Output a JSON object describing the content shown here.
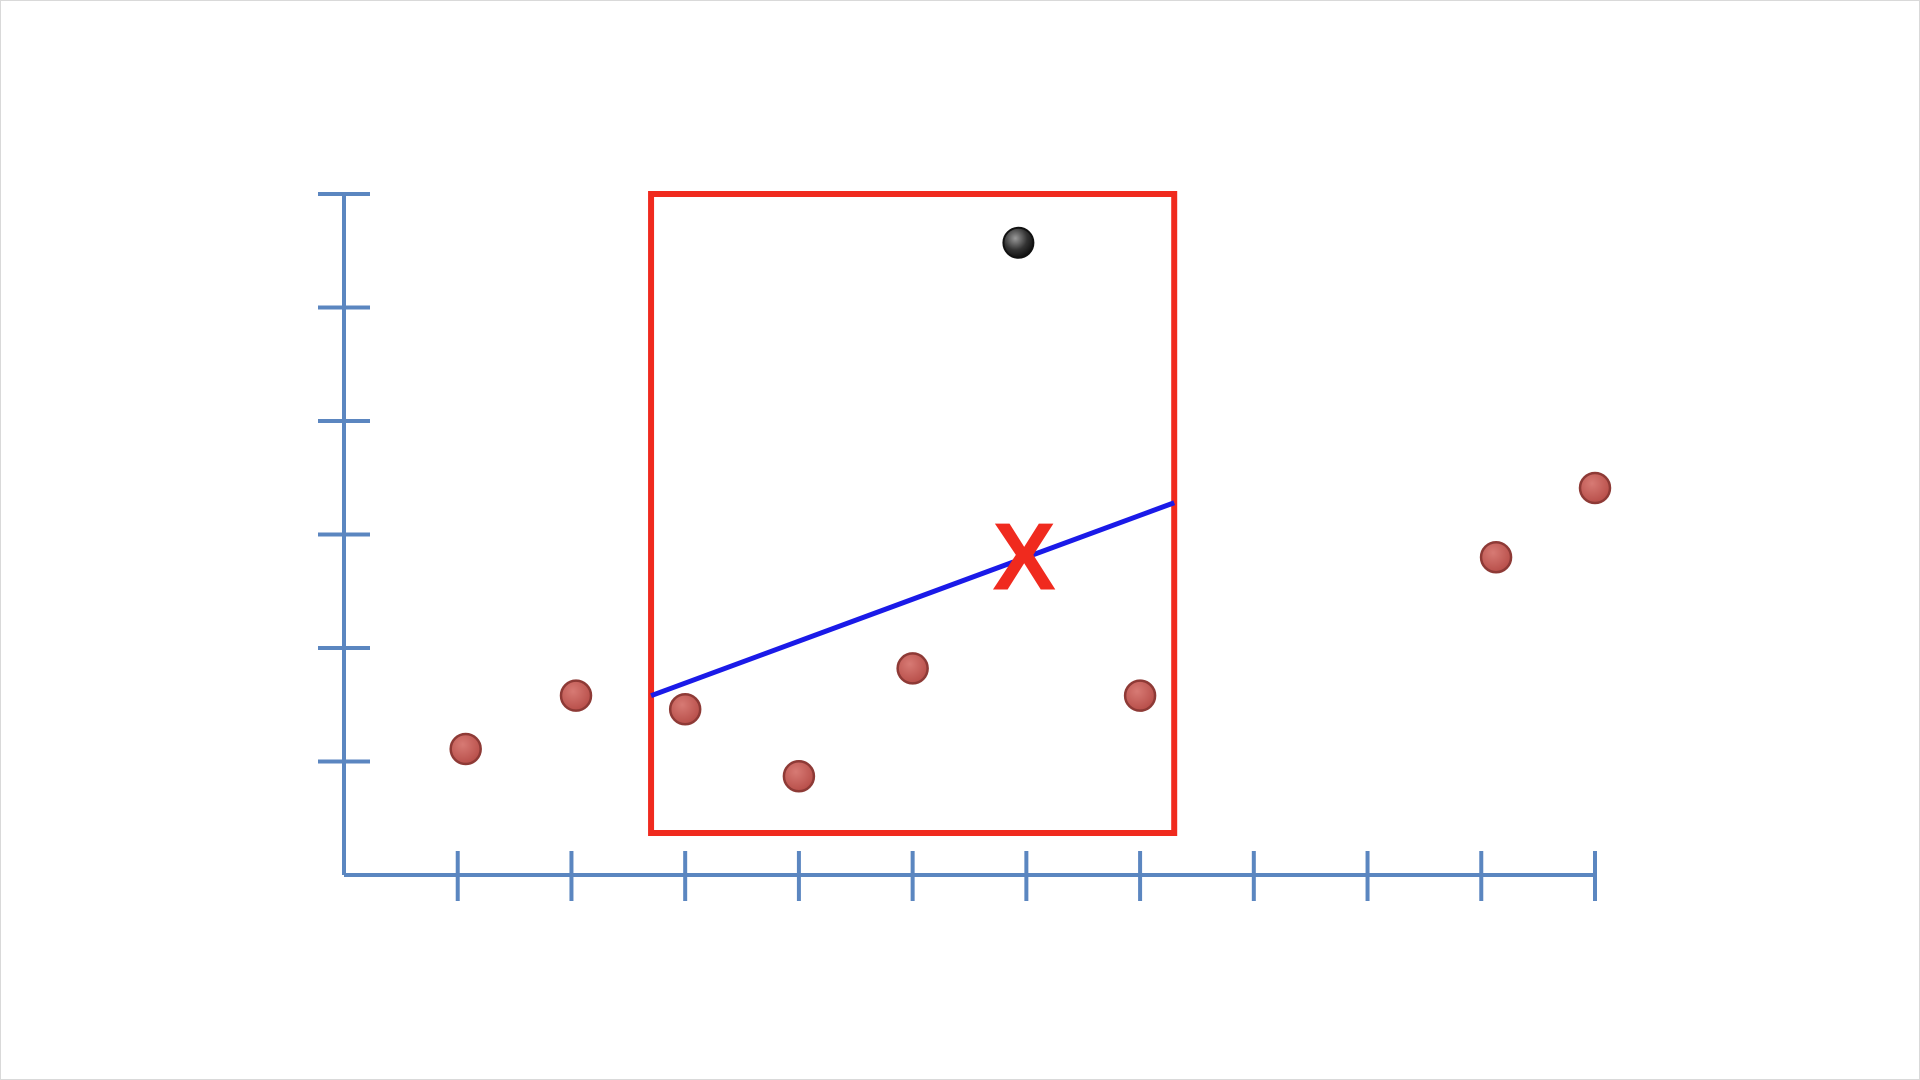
{
  "chart_data": {
    "type": "scatter",
    "title": "",
    "xlabel": "",
    "ylabel": "",
    "xlim": [
      0,
      11
    ],
    "ylim": [
      0,
      6
    ],
    "x_ticks": [
      1,
      2,
      3,
      4,
      5,
      6,
      7,
      8,
      9,
      10,
      11
    ],
    "y_ticks": [
      1,
      2,
      3,
      4,
      5,
      6
    ],
    "grid": false,
    "legend": "none",
    "points": [
      {
        "x": 1.07,
        "y": 1.11,
        "kind": "data"
      },
      {
        "x": 2.04,
        "y": 1.58,
        "kind": "data"
      },
      {
        "x": 3.0,
        "y": 1.46,
        "kind": "data"
      },
      {
        "x": 4.0,
        "y": 0.87,
        "kind": "data"
      },
      {
        "x": 5.0,
        "y": 1.82,
        "kind": "data"
      },
      {
        "x": 7.0,
        "y": 1.58,
        "kind": "data"
      },
      {
        "x": 10.13,
        "y": 2.8,
        "kind": "data"
      },
      {
        "x": 11.0,
        "y": 3.41,
        "kind": "data"
      },
      {
        "x": 5.93,
        "y": 5.57,
        "kind": "highlighted"
      }
    ],
    "window": {
      "x_start": 2.7,
      "x_end": 7.3,
      "y_start": 0.37,
      "y_end": 6.0
    },
    "fit_line": {
      "x_start": 2.7,
      "y_start": 1.58,
      "x_end": 7.3,
      "y_end": 3.28
    },
    "prediction_marker": {
      "label": "X",
      "x": 5.98,
      "y": 2.8
    },
    "colors": {
      "axis": "#5b86c0",
      "data_point": "#b84f4a",
      "data_point_outline": "#8e3a36",
      "highlighted_point": "#333333",
      "window": "#f02a1e",
      "fit_line": "#1a1ae8",
      "marker": "#f02a1e"
    }
  }
}
